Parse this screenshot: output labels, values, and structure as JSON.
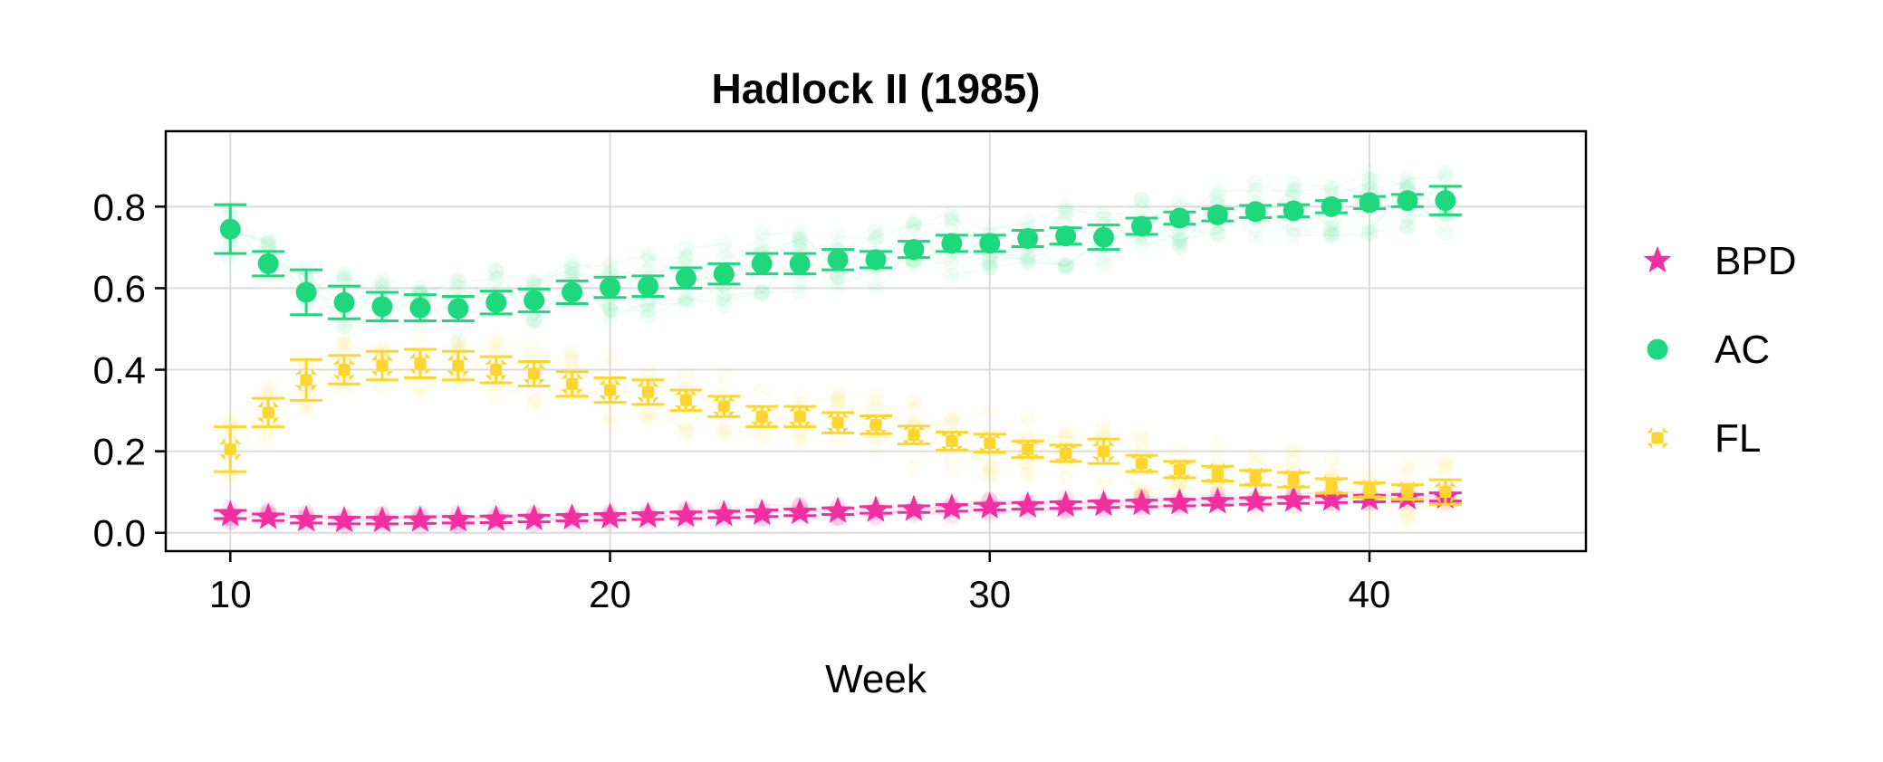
{
  "chart_data": {
    "type": "scatter",
    "title": "Hadlock II (1985)",
    "xlabel": "Week",
    "ylabel": "",
    "xlim": [
      8.3,
      45.7
    ],
    "ylim": [
      -0.045,
      0.985
    ],
    "xticks": [
      10,
      20,
      30,
      40
    ],
    "yticks": [
      0.0,
      0.2,
      0.4,
      0.6,
      0.8
    ],
    "ytick_labels": [
      "0.0",
      "0.2",
      "0.4",
      "0.6",
      "0.8"
    ],
    "grid": true,
    "legend": {
      "placement": "outside-right"
    },
    "x": [
      10,
      11,
      12,
      13,
      14,
      15,
      16,
      17,
      18,
      19,
      20,
      21,
      22,
      23,
      24,
      25,
      26,
      27,
      28,
      29,
      30,
      31,
      32,
      33,
      34,
      35,
      36,
      37,
      38,
      39,
      40,
      41,
      42
    ],
    "series": [
      {
        "name": "BPD",
        "marker": "star",
        "color": "#f22ea0",
        "values": [
          0.045,
          0.038,
          0.032,
          0.03,
          0.03,
          0.031,
          0.032,
          0.033,
          0.035,
          0.037,
          0.039,
          0.041,
          0.043,
          0.045,
          0.048,
          0.05,
          0.053,
          0.056,
          0.058,
          0.061,
          0.064,
          0.066,
          0.068,
          0.07,
          0.072,
          0.074,
          0.076,
          0.078,
          0.08,
          0.082,
          0.084,
          0.086,
          0.088
        ],
        "errors": [
          0.01,
          0.008,
          0.008,
          0.008,
          0.008,
          0.008,
          0.008,
          0.008,
          0.008,
          0.008,
          0.008,
          0.008,
          0.008,
          0.008,
          0.008,
          0.008,
          0.008,
          0.008,
          0.008,
          0.008,
          0.008,
          0.008,
          0.008,
          0.008,
          0.008,
          0.008,
          0.008,
          0.008,
          0.008,
          0.008,
          0.008,
          0.008,
          0.01
        ]
      },
      {
        "name": "AC",
        "marker": "circle",
        "color": "#1ed87d",
        "values": [
          0.745,
          0.66,
          0.59,
          0.565,
          0.555,
          0.552,
          0.55,
          0.565,
          0.57,
          0.59,
          0.602,
          0.605,
          0.625,
          0.635,
          0.66,
          0.66,
          0.67,
          0.67,
          0.695,
          0.71,
          0.71,
          0.722,
          0.728,
          0.725,
          0.752,
          0.772,
          0.78,
          0.788,
          0.79,
          0.8,
          0.81,
          0.815,
          0.815
        ],
        "errors": [
          0.06,
          0.03,
          0.055,
          0.04,
          0.035,
          0.032,
          0.03,
          0.028,
          0.028,
          0.028,
          0.025,
          0.025,
          0.025,
          0.025,
          0.025,
          0.025,
          0.025,
          0.02,
          0.02,
          0.02,
          0.02,
          0.02,
          0.02,
          0.03,
          0.02,
          0.015,
          0.015,
          0.015,
          0.015,
          0.015,
          0.015,
          0.015,
          0.035
        ]
      },
      {
        "name": "FL",
        "marker": "x",
        "color": "#fdd52f",
        "values": [
          0.205,
          0.295,
          0.375,
          0.4,
          0.41,
          0.415,
          0.41,
          0.4,
          0.39,
          0.365,
          0.35,
          0.345,
          0.325,
          0.31,
          0.285,
          0.285,
          0.27,
          0.265,
          0.24,
          0.225,
          0.22,
          0.205,
          0.195,
          0.2,
          0.17,
          0.155,
          0.145,
          0.135,
          0.13,
          0.115,
          0.105,
          0.1,
          0.1
        ],
        "errors": [
          0.055,
          0.035,
          0.05,
          0.035,
          0.035,
          0.035,
          0.035,
          0.032,
          0.03,
          0.03,
          0.03,
          0.03,
          0.025,
          0.025,
          0.025,
          0.025,
          0.025,
          0.022,
          0.022,
          0.022,
          0.022,
          0.02,
          0.02,
          0.03,
          0.02,
          0.02,
          0.018,
          0.018,
          0.018,
          0.018,
          0.018,
          0.018,
          0.03
        ]
      }
    ]
  }
}
